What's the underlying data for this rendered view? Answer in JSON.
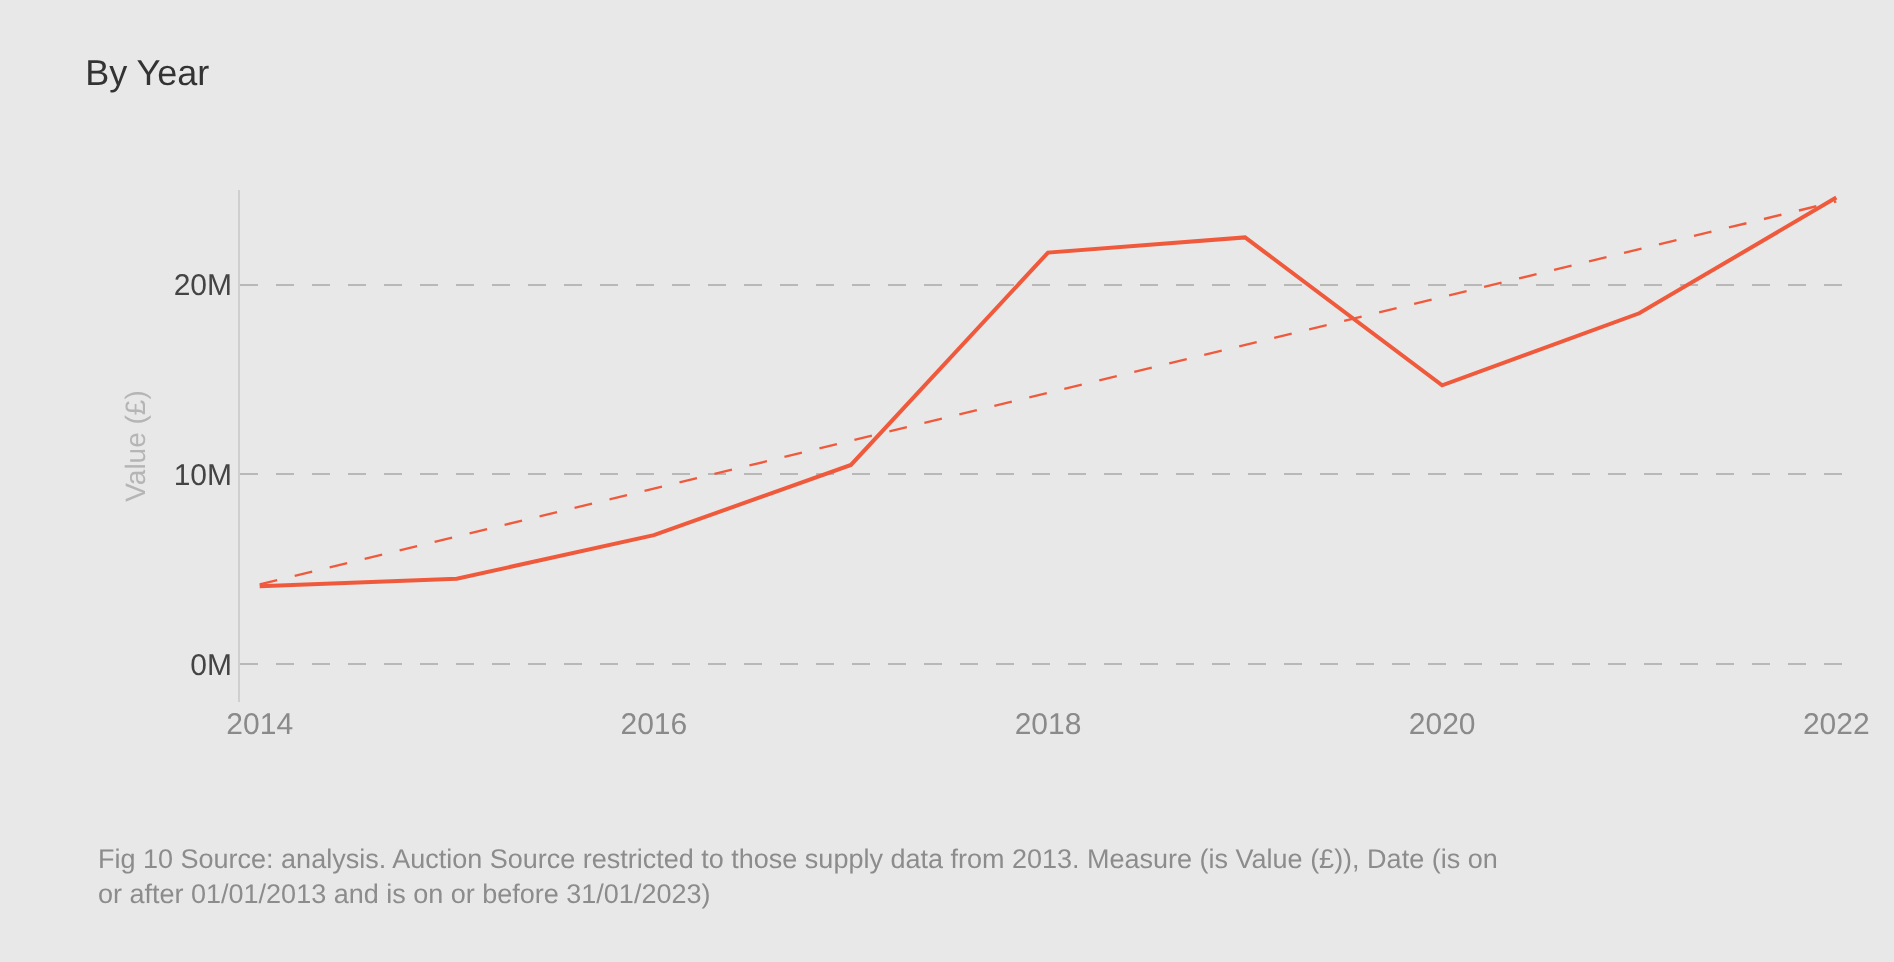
{
  "chart_data": {
    "type": "line",
    "title": "By Year",
    "ylabel": "Value (£)",
    "x": [
      2014,
      2015,
      2016,
      2017,
      2018,
      2019,
      2020,
      2021,
      2022
    ],
    "series": [
      {
        "color": "#f05a3c",
        "values": [
          4.1,
          4.5,
          6.8,
          10.5,
          21.7,
          22.5,
          14.7,
          18.5,
          24.6
        ],
        "line_style": "solid"
      },
      {
        "color": "#f05a3c",
        "x": [
          2014,
          2022
        ],
        "values": [
          4.2,
          24.4
        ],
        "line_style": "dashed"
      }
    ],
    "xlim": [
      2013.9,
      2022.1
    ],
    "xticks": [
      2014,
      2016,
      2018,
      2020,
      2022
    ],
    "ylim": [
      -2,
      25
    ],
    "yticks": [
      {
        "value": 0,
        "label": "0M"
      },
      {
        "value": 10,
        "label": "10M"
      },
      {
        "value": 20,
        "label": "20M"
      }
    ],
    "grid": "y",
    "marker": "none",
    "annotations": [
      "Fig 10 Source: analysis. Auction Source restricted to those supply data from 2013. Measure (is Value (£)), Date (is on or after 01/01/2013 and is on or before 31/01/2023)"
    ]
  }
}
